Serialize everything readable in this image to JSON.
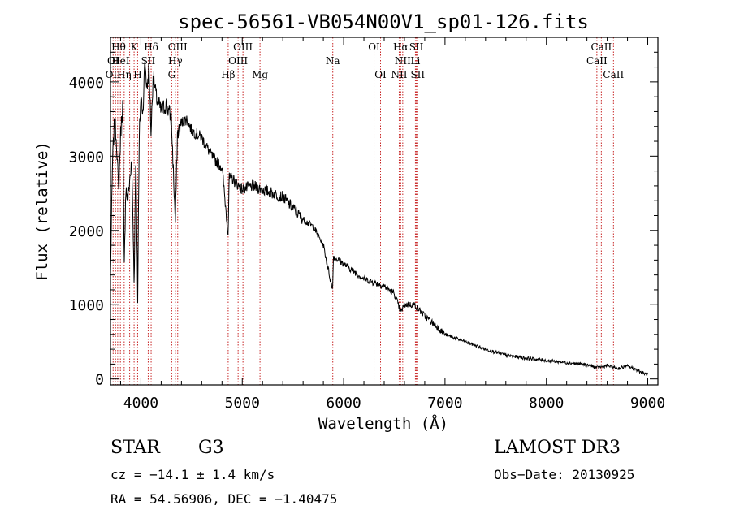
{
  "chart_data": {
    "type": "line",
    "title": "spec-56561-VB054N00V1_sp01-126.fits",
    "xlabel": "Wavelength (Å)",
    "ylabel": "Flux (relative)",
    "xlim": [
      3700,
      9100
    ],
    "ylim": [
      -80,
      4600
    ],
    "xticks": [
      4000,
      5000,
      6000,
      7000,
      8000,
      9000
    ],
    "xtick_labels": [
      "4000",
      "5000",
      "6000",
      "7000",
      "8000",
      "9000"
    ],
    "yticks": [
      0,
      1000,
      2000,
      3000,
      4000
    ],
    "ytick_labels": [
      "0",
      "1000",
      "2000",
      "3000",
      "4000"
    ],
    "grid": false,
    "series": [
      {
        "name": "spectrum",
        "x": [
          3700,
          3720,
          3740,
          3760,
          3780,
          3800,
          3820,
          3835,
          3850,
          3870,
          3890,
          3910,
          3933,
          3950,
          3968,
          3985,
          4000,
          4020,
          4040,
          4060,
          4080,
          4101,
          4120,
          4150,
          4200,
          4250,
          4300,
          4340,
          4360,
          4400,
          4450,
          4500,
          4600,
          4700,
          4800,
          4861,
          4870,
          4900,
          5000,
          5100,
          5200,
          5300,
          5400,
          5500,
          5600,
          5700,
          5800,
          5890,
          5900,
          6000,
          6100,
          6200,
          6300,
          6400,
          6500,
          6563,
          6600,
          6700,
          6800,
          7000,
          7200,
          7400,
          7600,
          7800,
          8000,
          8200,
          8400,
          8500,
          8600,
          8700,
          8800,
          8900,
          8950,
          9000
        ],
        "y": [
          1400,
          2900,
          3500,
          3200,
          2500,
          3300,
          3700,
          1400,
          2600,
          2400,
          2700,
          2900,
          1300,
          3100,
          1100,
          3300,
          3800,
          3600,
          4300,
          3900,
          4200,
          3300,
          4100,
          3800,
          3600,
          3700,
          3500,
          2100,
          3300,
          3450,
          3500,
          3350,
          3250,
          3000,
          2850,
          1950,
          2700,
          2700,
          2550,
          2600,
          2550,
          2500,
          2450,
          2300,
          2150,
          2050,
          1800,
          1200,
          1650,
          1550,
          1450,
          1350,
          1300,
          1250,
          1150,
          900,
          1000,
          1000,
          850,
          600,
          500,
          400,
          320,
          280,
          250,
          220,
          190,
          150,
          180,
          140,
          170,
          120,
          80,
          60
        ]
      }
    ],
    "lines": [
      {
        "wave": 3726,
        "label": "OII"
      },
      {
        "wave": 3750,
        "label": "Hθ"
      },
      {
        "wave": 3771,
        "label": "Hη"
      },
      {
        "wave": 3798,
        "label": "Hθ"
      },
      {
        "wave": 3835,
        "label": "Hη"
      },
      {
        "wave": 3889,
        "label": "HeI"
      },
      {
        "wave": 3933,
        "label": "K"
      },
      {
        "wave": 3968,
        "label": "H"
      },
      {
        "wave": 4072,
        "label": "SII"
      },
      {
        "wave": 4101,
        "label": "Hδ"
      },
      {
        "wave": 4304,
        "label": "G"
      },
      {
        "wave": 4340,
        "label": "Hγ"
      },
      {
        "wave": 4363,
        "label": "OIII"
      },
      {
        "wave": 4861,
        "label": "Hβ"
      },
      {
        "wave": 4959,
        "label": "OIII"
      },
      {
        "wave": 5007,
        "label": "OIII"
      },
      {
        "wave": 5175,
        "label": "Mg"
      },
      {
        "wave": 5893,
        "label": "Na"
      },
      {
        "wave": 6300,
        "label": "OI"
      },
      {
        "wave": 6364,
        "label": "OI"
      },
      {
        "wave": 6548,
        "label": "NII"
      },
      {
        "wave": 6563,
        "label": "Hα"
      },
      {
        "wave": 6583,
        "label": "NII"
      },
      {
        "wave": 6708,
        "label": "Li"
      },
      {
        "wave": 6717,
        "label": "SII"
      },
      {
        "wave": 6731,
        "label": "SII"
      },
      {
        "wave": 8498,
        "label": "CaII"
      },
      {
        "wave": 8542,
        "label": "CaII"
      },
      {
        "wave": 8662,
        "label": "CaII"
      }
    ],
    "annotations": [
      {
        "text": "OI",
        "tier": 1,
        "wave": 3726
      },
      {
        "text": "HeI",
        "tier": 1,
        "wave": 3800
      },
      {
        "text": "SII",
        "tier": 1,
        "wave": 4072
      },
      {
        "text": "OIII",
        "tier": 0,
        "wave": 4363
      },
      {
        "text": "Hγ",
        "tier": 1,
        "wave": 4340
      },
      {
        "text": "G",
        "tier": 2,
        "wave": 4304
      },
      {
        "text": "Hβ",
        "tier": 2,
        "wave": 4861
      },
      {
        "text": "OIII",
        "tier": 0,
        "wave": 5007
      },
      {
        "text": "OIII",
        "tier": 1,
        "wave": 4959
      },
      {
        "text": "Mg",
        "tier": 2,
        "wave": 5175
      },
      {
        "text": "Na",
        "tier": 1,
        "wave": 5893
      },
      {
        "text": "OI",
        "tier": 0,
        "wave": 6300
      },
      {
        "text": "OI",
        "tier": 2,
        "wave": 6364
      },
      {
        "text": "Hα",
        "tier": 0,
        "wave": 6563
      },
      {
        "text": "SII",
        "tier": 0,
        "wave": 6717
      },
      {
        "text": "NII",
        "tier": 1,
        "wave": 6583
      },
      {
        "text": "Li",
        "tier": 1,
        "wave": 6708
      },
      {
        "text": "NII",
        "tier": 2,
        "wave": 6548
      },
      {
        "text": "SII",
        "tier": 2,
        "wave": 6731
      },
      {
        "text": "CaII",
        "tier": 0,
        "wave": 8542
      },
      {
        "text": "CaII",
        "tier": 1,
        "wave": 8498
      },
      {
        "text": "CaII",
        "tier": 2,
        "wave": 8662
      },
      {
        "text": "Hθ",
        "tier": 0,
        "wave": 3780
      },
      {
        "text": "K",
        "tier": 0,
        "wave": 3933
      },
      {
        "text": "Hδ",
        "tier": 0,
        "wave": 4101
      },
      {
        "text": "Hη",
        "tier": 2,
        "wave": 3835
      },
      {
        "text": "H",
        "tier": 2,
        "wave": 3968
      },
      {
        "text": "OII",
        "tier": 2,
        "wave": 3726
      }
    ]
  },
  "info": {
    "class": "STAR",
    "subclass": "G3",
    "survey": "LAMOST DR3",
    "cz": "cz = −14.1 ± 1.4 km/s",
    "obsdate": "Obs−Date: 20130925",
    "radec": "RA =  54.56906, DEC =  −1.40475"
  },
  "colors": {
    "line": "#c82828",
    "spectrum": "#000000",
    "axis": "#000000"
  }
}
